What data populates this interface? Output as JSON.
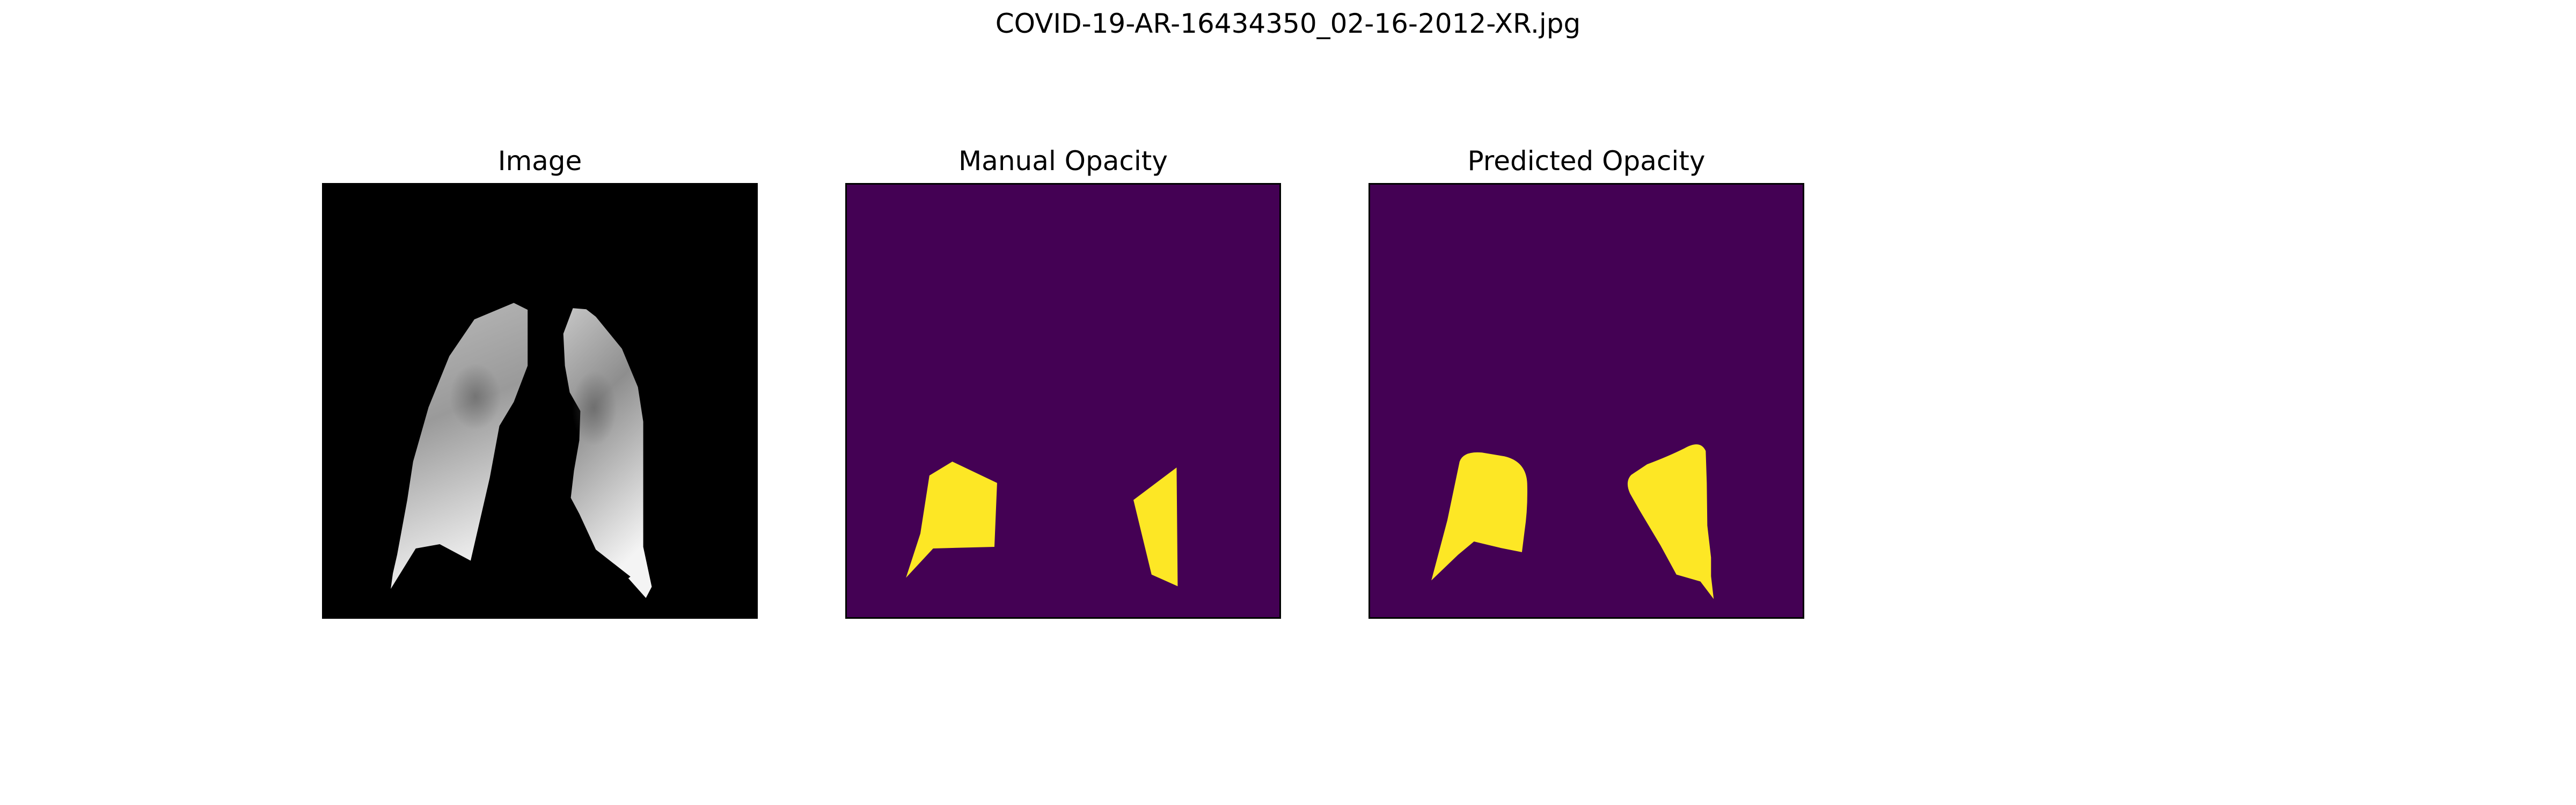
{
  "figure": {
    "title": "COVID-19-AR-16434350_02-16-2012-XR.jpg",
    "background_color": "#ffffff"
  },
  "panels": [
    {
      "title": "Image",
      "content": "lung x-ray (grayscale, masked)",
      "background_color": "#000000"
    },
    {
      "title": "Manual Opacity",
      "content": "opacity mask",
      "background_color": "#440154",
      "mask_color": "#fde725"
    },
    {
      "title": "Predicted Opacity",
      "content": "opacity mask",
      "background_color": "#440154",
      "mask_color": "#fde725"
    }
  ]
}
